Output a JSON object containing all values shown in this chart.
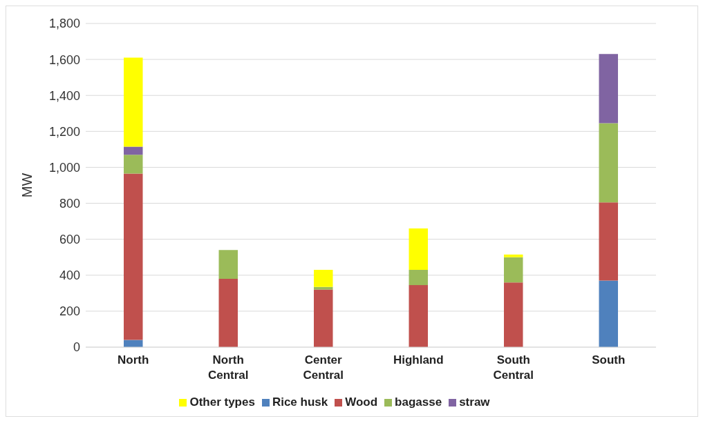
{
  "chart_data": {
    "type": "bar",
    "stacked": true,
    "ylabel": "MW",
    "categories": [
      "North",
      "North Central",
      "Center Central",
      "Highland",
      "South Central",
      "South"
    ],
    "series": [
      {
        "name": "Rice husk",
        "color": "#4f81bd",
        "values": [
          40,
          0,
          0,
          0,
          0,
          370
        ]
      },
      {
        "name": "Wood",
        "color": "#c0504d",
        "values": [
          925,
          380,
          320,
          345,
          360,
          435
        ]
      },
      {
        "name": "bagasse",
        "color": "#9bbb59",
        "values": [
          105,
          160,
          15,
          85,
          140,
          440
        ]
      },
      {
        "name": "straw",
        "color": "#8064a2",
        "values": [
          45,
          0,
          0,
          0,
          0,
          385
        ]
      },
      {
        "name": "Other types",
        "color": "#ffff00",
        "values": [
          495,
          0,
          95,
          230,
          15,
          0
        ]
      }
    ],
    "ylim": [
      0,
      1800
    ],
    "yticks": [
      {
        "value": 0,
        "label": "0"
      },
      {
        "value": 200,
        "label": "200"
      },
      {
        "value": 400,
        "label": "400"
      },
      {
        "value": 600,
        "label": "600"
      },
      {
        "value": 800,
        "label": "800"
      },
      {
        "value": 1000,
        "label": "1,000"
      },
      {
        "value": 1200,
        "label": "1,200"
      },
      {
        "value": 1400,
        "label": "1,400"
      },
      {
        "value": 1600,
        "label": "1,600"
      },
      {
        "value": 1800,
        "label": "1,800"
      }
    ],
    "grid": "y",
    "legend": "bottom"
  }
}
